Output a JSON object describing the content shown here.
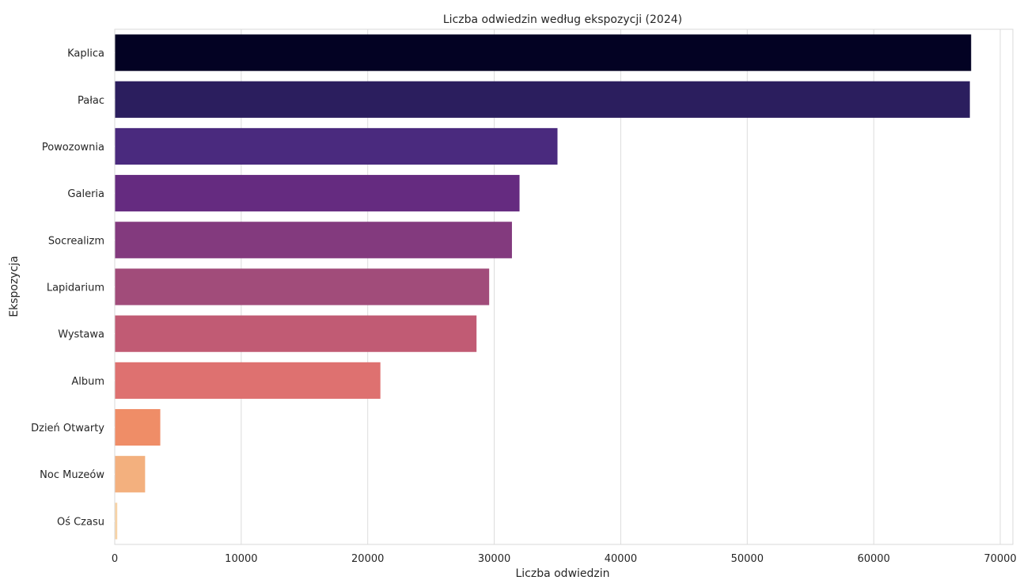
{
  "chart_data": {
    "type": "bar",
    "orientation": "horizontal",
    "title": "Liczba odwiedzin według ekspozycji (2024)",
    "xlabel": "Liczba odwiedzin",
    "ylabel": "Ekspozycja",
    "xlim": [
      0,
      71000
    ],
    "x_ticks": [
      0,
      10000,
      20000,
      30000,
      40000,
      50000,
      60000,
      70000
    ],
    "grid": "vertical",
    "legend": "none",
    "categories": [
      "Kaplica",
      "Pałac",
      "Powozownia",
      "Galeria",
      "Socrealizm",
      "Lapidarium",
      "Wystawa",
      "Album",
      "Dzień Otwarty",
      "Noc Muzeów",
      "Oś Czasu"
    ],
    "values": [
      67700,
      67600,
      35000,
      32000,
      31400,
      29600,
      28600,
      21000,
      3600,
      2400,
      200
    ],
    "colors": [
      "#030223",
      "#2b1e5e",
      "#4a2a7e",
      "#652b80",
      "#833a7e",
      "#a14c7a",
      "#c15b74",
      "#de7170",
      "#ef8d67",
      "#f3b07e",
      "#f7d3a6"
    ]
  }
}
